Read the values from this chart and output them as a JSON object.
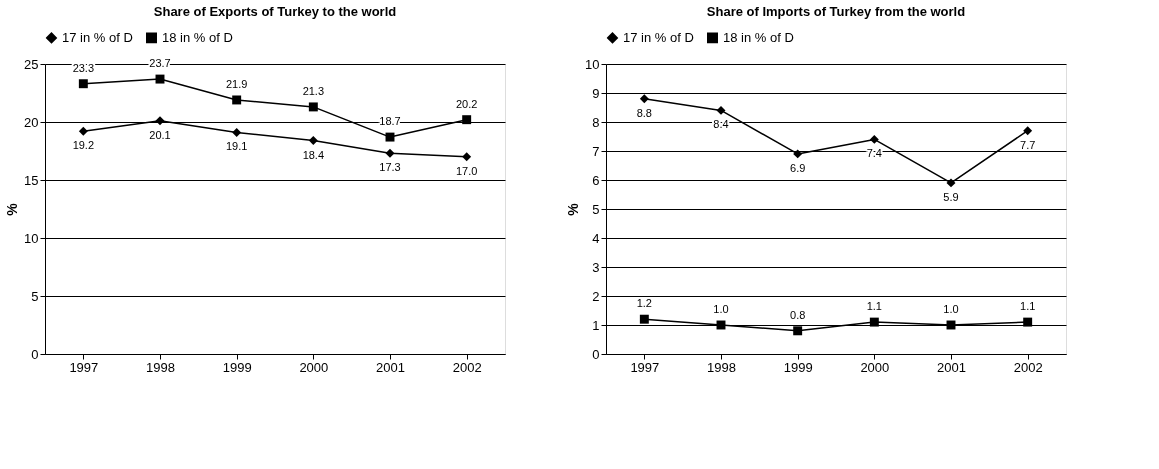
{
  "chart_data": [
    {
      "type": "line",
      "title": "Share of Exports of Turkey to the world",
      "ylabel": "%",
      "categories": [
        "1997",
        "1998",
        "1999",
        "2000",
        "2001",
        "2002"
      ],
      "series": [
        {
          "name": "17 in % of D",
          "color": "#000000",
          "marker": "diamond",
          "values": [
            19.2,
            20.1,
            19.1,
            18.4,
            17.3,
            17.0
          ],
          "value_labels": [
            "19.2",
            "20.1",
            "19.1",
            "18.4",
            "17.3",
            "17.0"
          ]
        },
        {
          "name": "18 in % of D",
          "color": "#000000",
          "marker": "square",
          "values": [
            23.3,
            23.7,
            21.9,
            21.3,
            18.7,
            20.2
          ],
          "value_labels": [
            "23.3",
            "23.7",
            "21.9",
            "21.3",
            "18.7",
            "20.2"
          ]
        }
      ],
      "ylim": [
        0,
        25
      ],
      "yticks": [
        0,
        5,
        10,
        15,
        20,
        25
      ],
      "grid": "y",
      "legend": "top"
    },
    {
      "type": "line",
      "title": "Share of Imports of Turkey from the world",
      "ylabel": "%",
      "categories": [
        "1997",
        "1998",
        "1999",
        "2000",
        "2001",
        "2002"
      ],
      "series": [
        {
          "name": "17 in % of D",
          "color": "#000000",
          "marker": "diamond",
          "values": [
            8.8,
            8.4,
            6.9,
            7.4,
            5.9,
            7.7
          ],
          "value_labels": [
            "8.8",
            "8.4",
            "6.9",
            "7.4",
            "5.9",
            "7.7"
          ]
        },
        {
          "name": "18 in % of D",
          "color": "#000000",
          "marker": "square",
          "values": [
            1.2,
            1.0,
            0.8,
            1.1,
            1.0,
            1.1
          ],
          "value_labels": [
            "1.2",
            "1.0",
            "0.8",
            "1.1",
            "1.0",
            "1.1"
          ]
        }
      ],
      "ylim": [
        0,
        10
      ],
      "yticks": [
        0,
        1,
        2,
        3,
        4,
        5,
        6,
        7,
        8,
        9,
        10
      ],
      "grid": "y",
      "legend": "top"
    }
  ]
}
